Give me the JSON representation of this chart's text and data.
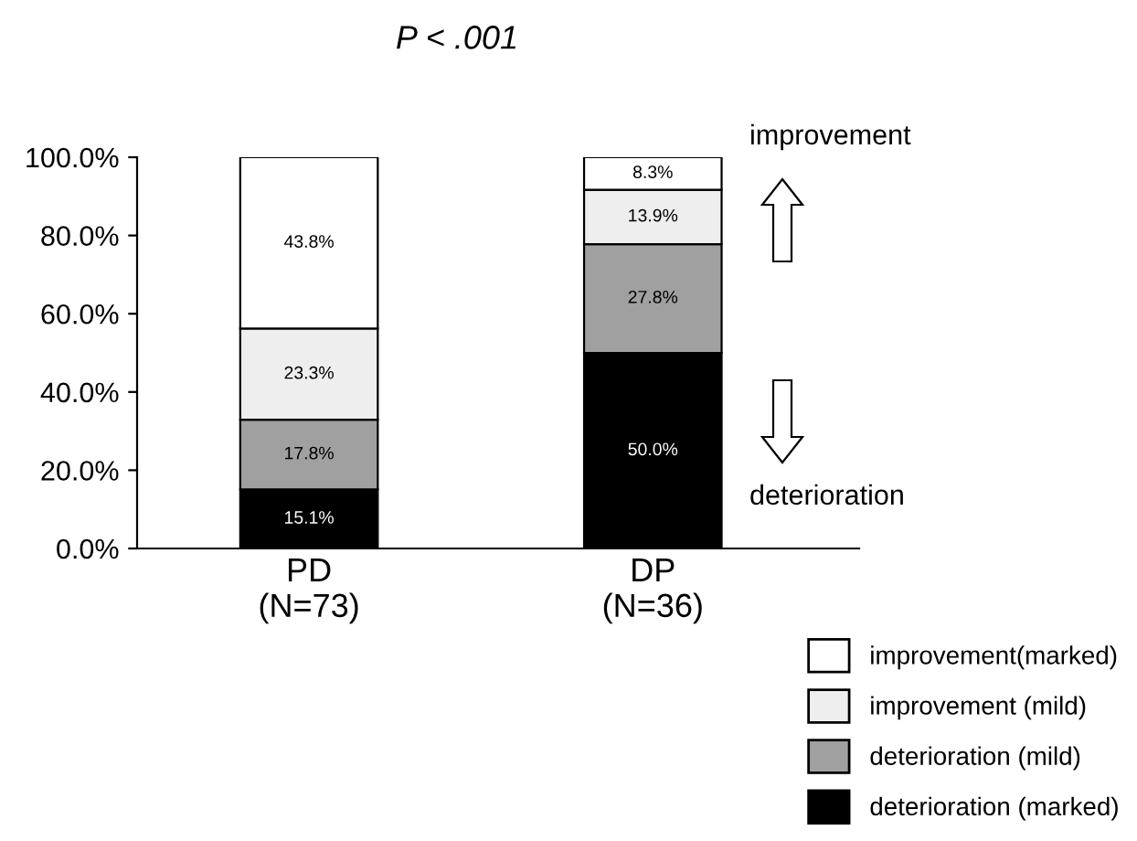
{
  "chart_data": {
    "type": "bar",
    "title": "P < .001",
    "categories": [
      "PD\n(N=73)",
      "DP\n(N=36)"
    ],
    "stacked": true,
    "legend": "bottom right",
    "grid": false,
    "series": [
      {
        "name": "deterioration (marked)",
        "color": "#000000",
        "values": [
          15.1,
          50.0
        ],
        "value_labels": [
          "15.1%",
          "50.0%"
        ]
      },
      {
        "name": "deterioration (mild)",
        "color": "#a0a0a0",
        "values": [
          17.8,
          27.8
        ],
        "value_labels": [
          "17.8%",
          "27.8%"
        ]
      },
      {
        "name": "improvement (mild)",
        "color": "#eeeeee",
        "values": [
          23.3,
          13.9
        ],
        "value_labels": [
          "23.3%",
          "13.9%"
        ]
      },
      {
        "name": "improvement(marked)",
        "color": "#ffffff",
        "values": [
          43.8,
          8.3
        ],
        "value_labels": [
          "43.8%",
          "8.3%"
        ]
      }
    ],
    "ylim": [
      0,
      100
    ],
    "yticks": [
      {
        "value": 0,
        "label": "0.0%"
      },
      {
        "value": 20,
        "label": "20.0%"
      },
      {
        "value": 40,
        "label": "40.0%"
      },
      {
        "value": 60,
        "label": "60.0%"
      },
      {
        "value": 80,
        "label": "80.0%"
      },
      {
        "value": 100,
        "label": "100.0%"
      }
    ],
    "annotations": [
      "improvement",
      "deterioration"
    ]
  }
}
